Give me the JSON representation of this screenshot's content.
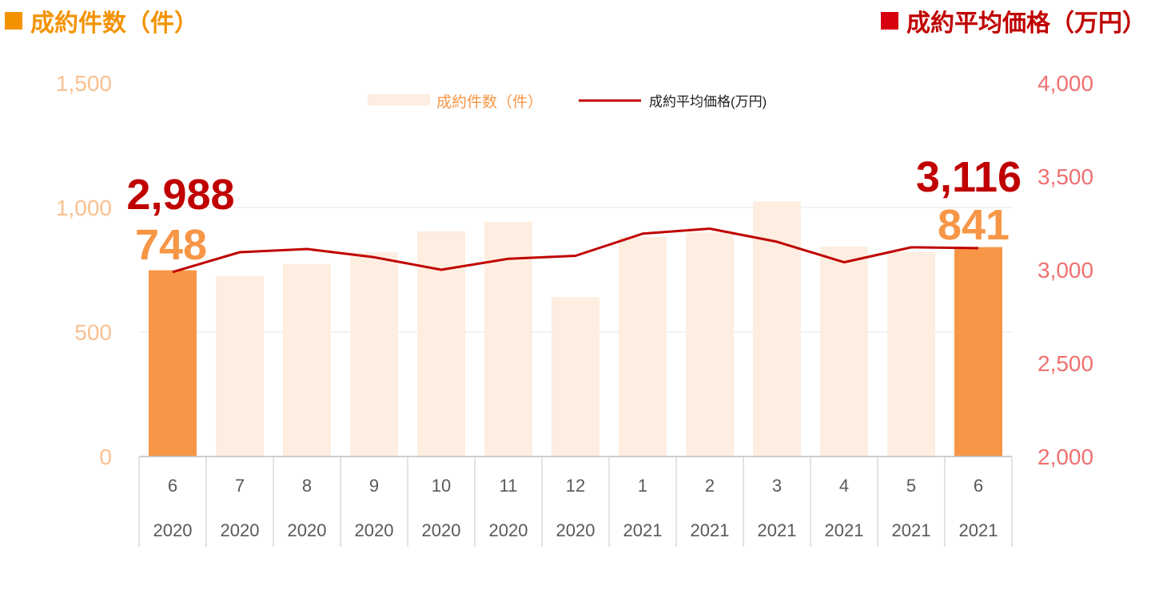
{
  "header": {
    "left_title": "成約件数（件）",
    "right_title": "成約平均価格（万円）",
    "left_color": "#f39200",
    "right_color": "#c00000"
  },
  "chart_data": {
    "type": "bar",
    "categories": [
      "6",
      "7",
      "8",
      "9",
      "10",
      "11",
      "12",
      "1",
      "2",
      "3",
      "4",
      "5",
      "6"
    ],
    "years": [
      "2020",
      "2020",
      "2020",
      "2020",
      "2020",
      "2020",
      "2020",
      "2021",
      "2021",
      "2021",
      "2021",
      "2021",
      "2021"
    ],
    "series": [
      {
        "name": "成約件数（件）",
        "type": "bar",
        "axis": "left",
        "values": [
          748,
          726,
          773,
          820,
          905,
          943,
          640,
          882,
          900,
          1025,
          843,
          822,
          841
        ],
        "color": "#fdeee1",
        "highlight_color": "#f79646",
        "highlight_indices": [
          0,
          12
        ]
      },
      {
        "name": "成約平均価格(万円)",
        "type": "line",
        "axis": "right",
        "values": [
          2988,
          3094,
          3111,
          3067,
          3000,
          3059,
          3075,
          3193,
          3220,
          3150,
          3040,
          3120,
          3116
        ],
        "color": "#c00000"
      }
    ],
    "y_left": {
      "min": 0,
      "max": 1500,
      "ticks": [
        "0",
        "500",
        "1,000",
        "1,500"
      ],
      "color": "#fac090"
    },
    "y_right": {
      "min": 2000,
      "max": 4000,
      "ticks": [
        "2,000",
        "2,500",
        "3,000",
        "3,500",
        "4,000"
      ],
      "color": "#f07070"
    },
    "annotations": {
      "first_price": "2,988",
      "first_count": "748",
      "last_price": "3,116",
      "last_count": "841",
      "price_color": "#c00000",
      "count_color": "#f79646"
    },
    "legend": {
      "position": "top-center"
    },
    "grid": true
  }
}
